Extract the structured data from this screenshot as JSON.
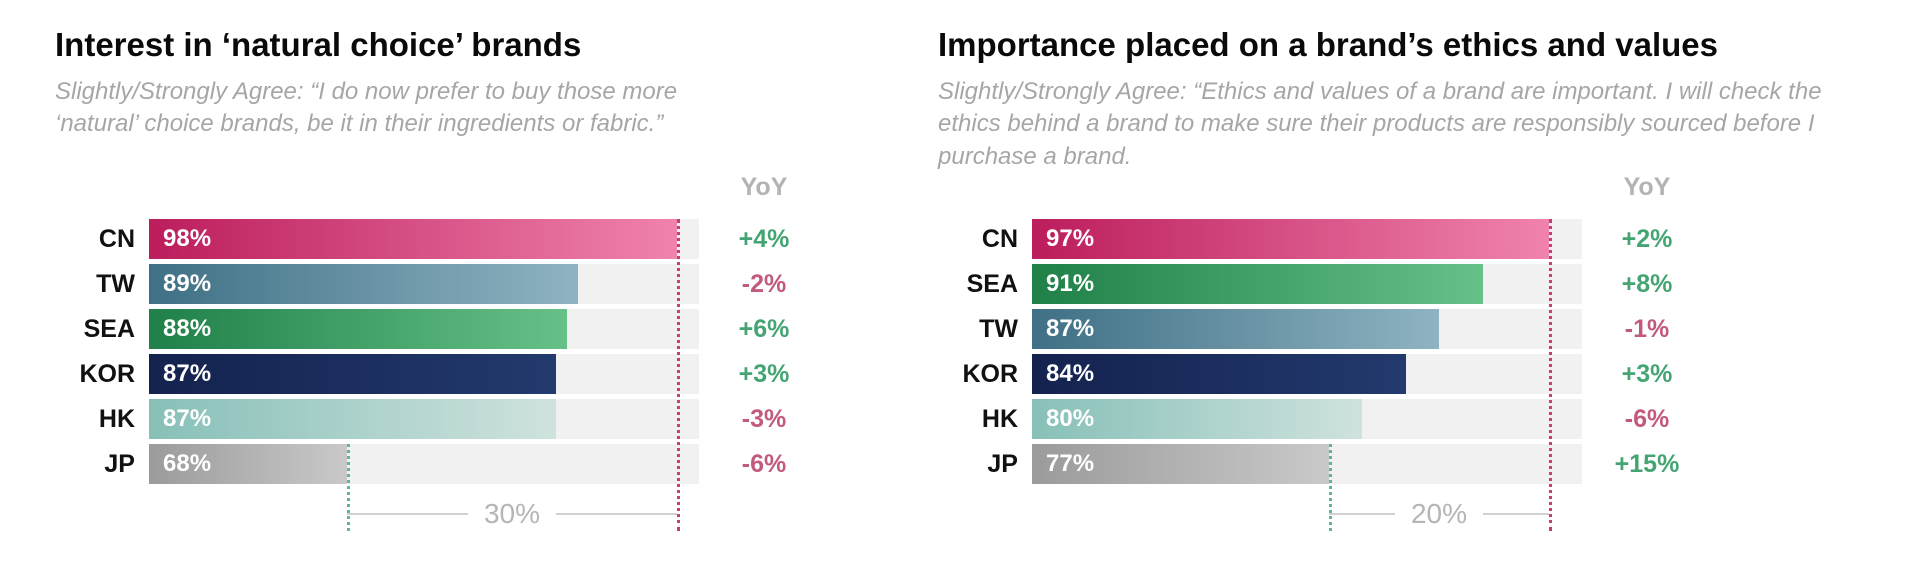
{
  "page": {
    "background": "#ffffff"
  },
  "colors": {
    "track": "#f1f1f1",
    "yoy_positive": "#44a573",
    "yoy_negative": "#c25a7c",
    "max_dotted_line": "#c73e72",
    "min_dotted_line": "#5eb88b",
    "range_line": "#d2d2d2",
    "subtitle_text": "#a6a6a6",
    "header_text": "#b3b3b3"
  },
  "chart_data": [
    {
      "type": "bar",
      "orientation": "horizontal",
      "title": "Interest in ‘natural choice’ brands",
      "subtitle": "Slightly/Strongly Agree: “I do now prefer to buy those more ‘natural’ choice brands, be it in their ingredients or fabric.”",
      "yoy_header": "YoY",
      "axis": {
        "min": 50,
        "max": 100,
        "grid": false
      },
      "range_label": "30%",
      "range_note": "gap between highest (CN 98%) and lowest (JP 68%)",
      "rows": [
        {
          "label": "CN",
          "value": 98,
          "value_label": "98%",
          "yoy": "+4%",
          "yoy_direction": "up",
          "bar_gradient": [
            "#bc1d5c",
            "#f083ad"
          ]
        },
        {
          "label": "TW",
          "value": 89,
          "value_label": "89%",
          "yoy": "-2%",
          "yoy_direction": "down",
          "bar_gradient": [
            "#3f7085",
            "#8fb3c2"
          ]
        },
        {
          "label": "SEA",
          "value": 88,
          "value_label": "88%",
          "yoy": "+6%",
          "yoy_direction": "up",
          "bar_gradient": [
            "#1f8048",
            "#66c188"
          ]
        },
        {
          "label": "KOR",
          "value": 87,
          "value_label": "87%",
          "yoy": "+3%",
          "yoy_direction": "up",
          "bar_gradient": [
            "#14224e",
            "#233a6e"
          ]
        },
        {
          "label": "HK",
          "value": 87,
          "value_label": "87%",
          "yoy": "-3%",
          "yoy_direction": "down",
          "bar_gradient": [
            "#87c0b8",
            "#cfe2de"
          ]
        },
        {
          "label": "JP",
          "value": 68,
          "value_label": "68%",
          "yoy": "-6%",
          "yoy_direction": "down",
          "bar_gradient": [
            "#9b9b9b",
            "#c9c9c9"
          ]
        }
      ]
    },
    {
      "type": "bar",
      "orientation": "horizontal",
      "title": "Importance placed on a brand’s ethics and values",
      "subtitle": "Slightly/Strongly Agree: “Ethics and values of a brand are important. I will check the ethics behind a brand to make sure their products are responsibly sourced before I purchase a brand.",
      "yoy_header": "YoY",
      "axis": {
        "min": 50,
        "max": 100,
        "grid": false
      },
      "range_label": "20%",
      "range_note": "gap between highest (CN 97%) and lowest (JP 77%)",
      "rows": [
        {
          "label": "CN",
          "value": 97,
          "value_label": "97%",
          "yoy": "+2%",
          "yoy_direction": "up",
          "bar_gradient": [
            "#bc1d5c",
            "#f083ad"
          ]
        },
        {
          "label": "SEA",
          "value": 91,
          "value_label": "91%",
          "yoy": "+8%",
          "yoy_direction": "up",
          "bar_gradient": [
            "#1f8048",
            "#66c188"
          ]
        },
        {
          "label": "TW",
          "value": 87,
          "value_label": "87%",
          "yoy": "-1%",
          "yoy_direction": "down",
          "bar_gradient": [
            "#3f7085",
            "#8fb3c2"
          ]
        },
        {
          "label": "KOR",
          "value": 84,
          "value_label": "84%",
          "yoy": "+3%",
          "yoy_direction": "up",
          "bar_gradient": [
            "#14224e",
            "#233a6e"
          ]
        },
        {
          "label": "HK",
          "value": 80,
          "value_label": "80%",
          "yoy": "-6%",
          "yoy_direction": "down",
          "bar_gradient": [
            "#87c0b8",
            "#cfe2de"
          ]
        },
        {
          "label": "JP",
          "value": 77,
          "value_label": "77%",
          "yoy": "+15%",
          "yoy_direction": "up",
          "bar_gradient": [
            "#9b9b9b",
            "#c9c9c9"
          ]
        }
      ]
    }
  ]
}
